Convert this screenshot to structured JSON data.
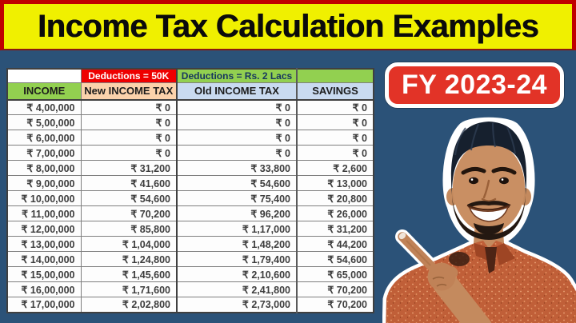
{
  "banner": {
    "title": "Income Tax Calculation Examples"
  },
  "badge": {
    "label": "FY 2023-24"
  },
  "chart_data": {
    "type": "table",
    "title": "Income Tax Calculation Examples",
    "group_headers": [
      "",
      "Deductions = 50K",
      "Deductions = Rs. 2 Lacs",
      ""
    ],
    "columns": [
      "INCOME",
      "New INCOME TAX",
      "Old INCOME TAX",
      "SAVINGS"
    ],
    "rows": [
      [
        "₹ 4,00,000",
        "₹ 0",
        "₹ 0",
        "₹ 0"
      ],
      [
        "₹ 5,00,000",
        "₹ 0",
        "₹ 0",
        "₹ 0"
      ],
      [
        "₹ 6,00,000",
        "₹ 0",
        "₹ 0",
        "₹ 0"
      ],
      [
        "₹ 7,00,000",
        "₹ 0",
        "₹ 0",
        "₹ 0"
      ],
      [
        "₹ 8,00,000",
        "₹ 31,200",
        "₹ 33,800",
        "₹ 2,600"
      ],
      [
        "₹ 9,00,000",
        "₹ 41,600",
        "₹ 54,600",
        "₹ 13,000"
      ],
      [
        "₹ 10,00,000",
        "₹ 54,600",
        "₹ 75,400",
        "₹ 20,800"
      ],
      [
        "₹ 11,00,000",
        "₹ 70,200",
        "₹ 96,200",
        "₹ 26,000"
      ],
      [
        "₹ 12,00,000",
        "₹ 85,800",
        "₹ 1,17,000",
        "₹ 31,200"
      ],
      [
        "₹ 13,00,000",
        "₹ 1,04,000",
        "₹ 1,48,200",
        "₹ 44,200"
      ],
      [
        "₹ 14,00,000",
        "₹ 1,24,800",
        "₹ 1,79,400",
        "₹ 54,600"
      ],
      [
        "₹ 15,00,000",
        "₹ 1,45,600",
        "₹ 2,10,600",
        "₹ 65,000"
      ],
      [
        "₹ 16,00,000",
        "₹ 1,71,600",
        "₹ 2,41,800",
        "₹ 70,200"
      ],
      [
        "₹ 17,00,000",
        "₹ 2,02,800",
        "₹ 2,73,000",
        "₹ 70,200"
      ]
    ],
    "currency": "INR"
  },
  "person": {
    "icon": "presenter-pointing-cutout"
  },
  "colors": {
    "page-bg": "#2B5278",
    "banner-bg": "#F0F000",
    "banner-border": "#C00000",
    "badge-bg": "#E23327",
    "badge-border": "#FFFFFF",
    "header-green": "#92D050",
    "deduction-red": "#EE0000",
    "new-tax-peach": "#FBD2AB",
    "old-tax-blue": "#C9DAF0",
    "navy-text": "#17375E",
    "cell-text": "#3D3D3D",
    "grid": "#7F7F7F",
    "grid-dark": "#404040",
    "shirt": "#C05F38",
    "skin": "#C48A5E",
    "hair": "#16202E"
  }
}
